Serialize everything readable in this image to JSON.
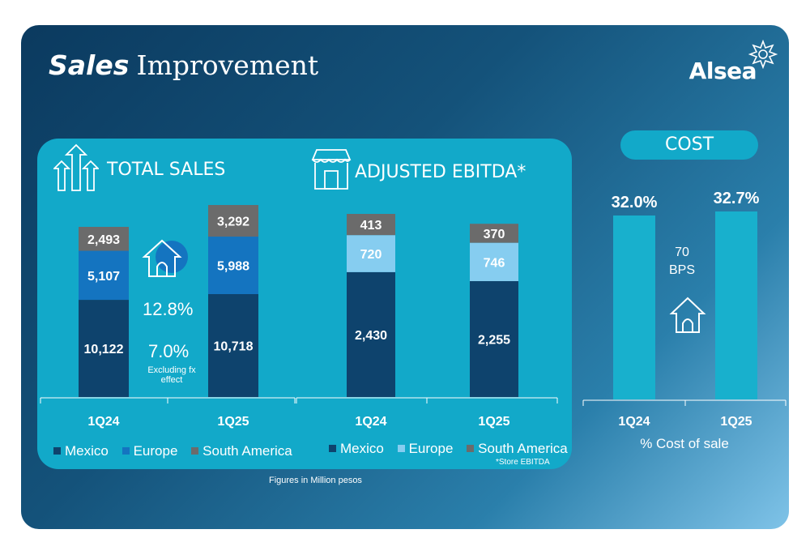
{
  "title": {
    "bold": "Sales",
    "rest": "Improvement"
  },
  "logo": "Alsea",
  "colors": {
    "mexico": "#0e436d",
    "europe_sales": "#1474c0",
    "europe_ebitda": "#86cdf0",
    "south_america": "#6b6b6b",
    "panel": "#12a9c9",
    "cost_bar": "#18b0cd"
  },
  "icons": {
    "total_sales": "up-arrows-icon",
    "ebitda": "storefront-icon",
    "growth": "house-up-icon"
  },
  "total_sales": {
    "heading": "TOTAL SALES",
    "growth": "12.8%",
    "growth_fx": "7.0%",
    "fx_note_1": "Excluding fx",
    "fx_note_2": "effect"
  },
  "ebitda": {
    "heading": "ADJUSTED EBITDA*",
    "note": "*Store EBITDA"
  },
  "cost": {
    "heading": "COST",
    "bps_value": "70",
    "bps_unit": "BPS",
    "caption": "% Cost of sale"
  },
  "footnote": "Figures in Million pesos",
  "legend_sales": [
    "Mexico",
    "Europe",
    "South America"
  ],
  "legend_ebitda": [
    "Mexico",
    "Europe",
    "South America"
  ],
  "chart_data": [
    {
      "type": "bar",
      "stacked": true,
      "title": "TOTAL SALES",
      "categories": [
        "1Q24",
        "1Q25"
      ],
      "series": [
        {
          "name": "Mexico",
          "values": [
            10122,
            10718
          ],
          "labels": [
            "10,122",
            "10,718"
          ]
        },
        {
          "name": "Europe",
          "values": [
            5107,
            5988
          ],
          "labels": [
            "5,107",
            "5,988"
          ]
        },
        {
          "name": "South America",
          "values": [
            2493,
            3292
          ],
          "labels": [
            "2,493",
            "3,292"
          ]
        }
      ]
    },
    {
      "type": "bar",
      "stacked": true,
      "title": "ADJUSTED EBITDA*",
      "categories": [
        "1Q24",
        "1Q25"
      ],
      "series": [
        {
          "name": "Mexico",
          "values": [
            2430,
            2255
          ],
          "labels": [
            "2,430",
            "2,255"
          ]
        },
        {
          "name": "Europe",
          "values": [
            720,
            746
          ],
          "labels": [
            "720",
            "746"
          ]
        },
        {
          "name": "South America",
          "values": [
            413,
            370
          ],
          "labels": [
            "413",
            "370"
          ]
        }
      ]
    },
    {
      "type": "bar",
      "title": "COST",
      "xlabel": "% Cost of sale",
      "categories": [
        "1Q24",
        "1Q25"
      ],
      "values": [
        32.0,
        32.7
      ],
      "labels": [
        "32.0%",
        "32.7%"
      ]
    }
  ]
}
